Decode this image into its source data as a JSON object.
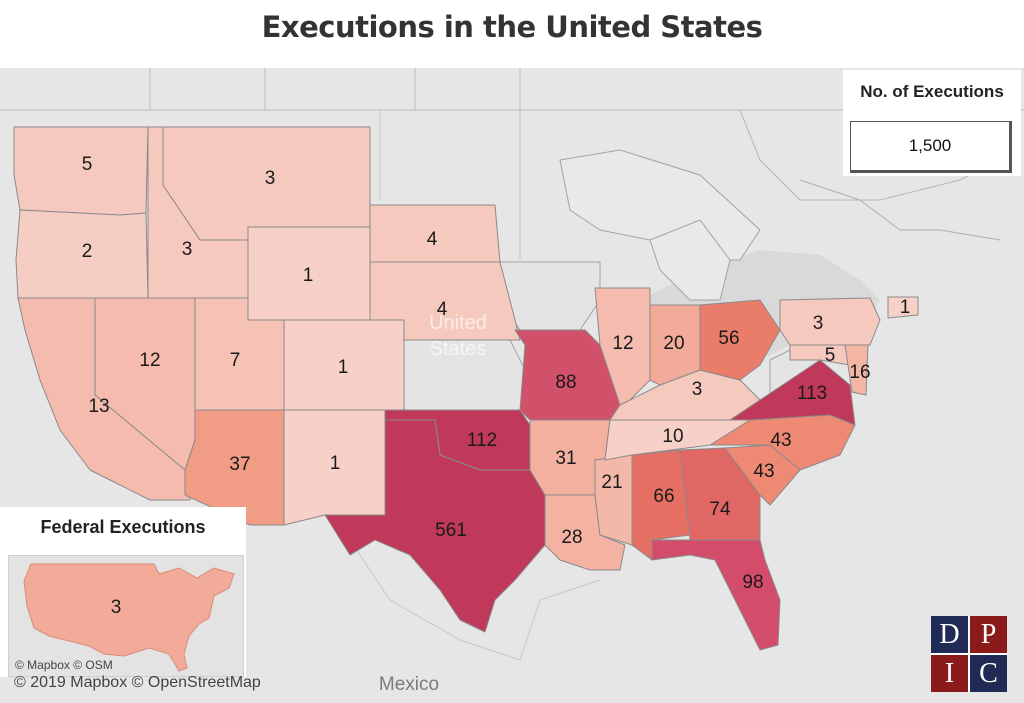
{
  "title": "Executions in the United States",
  "legend": {
    "title": "No. of Executions",
    "value": "1,500"
  },
  "map_labels": {
    "country": [
      "United",
      "States"
    ],
    "neighbor": "Mexico"
  },
  "federal": {
    "title": "Federal Executions",
    "count": 3,
    "attribution": "© Mapbox © OSM"
  },
  "attribution": "© 2019 Mapbox © OpenStreetMap",
  "logo": [
    "D",
    "P",
    "I",
    "C"
  ],
  "colors": {
    "low": "#f6c9bf",
    "mid": "#ee8a74",
    "high": "#c0385a",
    "background": "#e6e6e6"
  },
  "states": [
    {
      "name": "Washington",
      "executions": 5
    },
    {
      "name": "Oregon",
      "executions": 2
    },
    {
      "name": "California",
      "executions": 13
    },
    {
      "name": "Idaho",
      "executions": 3
    },
    {
      "name": "Montana",
      "executions": 3
    },
    {
      "name": "Nevada",
      "executions": 12
    },
    {
      "name": "Utah",
      "executions": 7
    },
    {
      "name": "Arizona",
      "executions": 37
    },
    {
      "name": "Wyoming",
      "executions": 1
    },
    {
      "name": "Colorado",
      "executions": 1
    },
    {
      "name": "New Mexico",
      "executions": 1
    },
    {
      "name": "South Dakota",
      "executions": 4
    },
    {
      "name": "Nebraska",
      "executions": 4
    },
    {
      "name": "Oklahoma",
      "executions": 112
    },
    {
      "name": "Texas",
      "executions": 561
    },
    {
      "name": "Missouri",
      "executions": 88
    },
    {
      "name": "Arkansas",
      "executions": 31
    },
    {
      "name": "Louisiana",
      "executions": 28
    },
    {
      "name": "Mississippi",
      "executions": 21
    },
    {
      "name": "Alabama",
      "executions": 66
    },
    {
      "name": "Georgia",
      "executions": 74
    },
    {
      "name": "Florida",
      "executions": 98
    },
    {
      "name": "South Carolina",
      "executions": 43
    },
    {
      "name": "North Carolina",
      "executions": 43
    },
    {
      "name": "Tennessee",
      "executions": 10
    },
    {
      "name": "Kentucky",
      "executions": 3
    },
    {
      "name": "Virginia",
      "executions": 113
    },
    {
      "name": "Illinois",
      "executions": 12
    },
    {
      "name": "Indiana",
      "executions": 20
    },
    {
      "name": "Ohio",
      "executions": 56
    },
    {
      "name": "Pennsylvania",
      "executions": 3
    },
    {
      "name": "Maryland",
      "executions": 5
    },
    {
      "name": "Delaware",
      "executions": 16
    },
    {
      "name": "Connecticut",
      "executions": 1
    }
  ]
}
